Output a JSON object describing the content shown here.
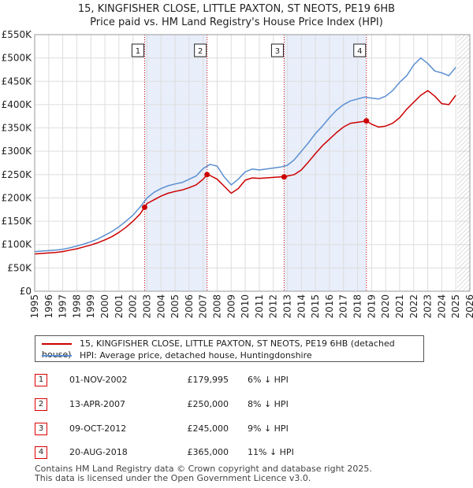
{
  "title": {
    "line1": "15, KINGFISHER CLOSE, LITTLE PAXTON, ST NEOTS, PE19 6HB",
    "line2": "Price paid vs. HM Land Registry's House Price Index (HPI)"
  },
  "colors": {
    "property": "#cc0000",
    "hpi": "#5b8fd1",
    "band": "#e8eefa",
    "grid": "#dddddd",
    "marker": "#cc0000"
  },
  "legend": {
    "property": "15, KINGFISHER CLOSE, LITTLE PAXTON, ST NEOTS, PE19 6HB (detached house)",
    "hpi": "HPI: Average price, detached house, Huntingdonshire"
  },
  "sales": [
    {
      "num": "1",
      "date": "01-NOV-2002",
      "price": "£179,995",
      "hpi": "6% ↓ HPI"
    },
    {
      "num": "2",
      "date": "13-APR-2007",
      "price": "£250,000",
      "hpi": "8% ↓ HPI"
    },
    {
      "num": "3",
      "date": "09-OCT-2012",
      "price": "£245,000",
      "hpi": "9% ↓ HPI"
    },
    {
      "num": "4",
      "date": "20-AUG-2018",
      "price": "£365,000",
      "hpi": "11% ↓ HPI"
    }
  ],
  "footer": {
    "line1": "Contains HM Land Registry data © Crown copyright and database right 2025.",
    "line2": "This data is licensed under the Open Government Licence v3.0."
  },
  "chart_data": {
    "type": "line",
    "title": "Price paid vs. HM Land Registry's House Price Index (HPI)",
    "xlim": [
      1995,
      2026
    ],
    "ylim": [
      0,
      550000
    ],
    "x_ticks": [
      "1995",
      "1996",
      "1997",
      "1998",
      "1999",
      "2000",
      "2001",
      "2002",
      "2003",
      "2004",
      "2005",
      "2006",
      "2007",
      "2008",
      "2009",
      "2010",
      "2011",
      "2012",
      "2013",
      "2014",
      "2015",
      "2016",
      "2017",
      "2018",
      "2019",
      "2020",
      "2021",
      "2022",
      "2023",
      "2024",
      "2025",
      "2026"
    ],
    "y_ticks": [
      {
        "value": 0,
        "label": "£0"
      },
      {
        "value": 50000,
        "label": "£50K"
      },
      {
        "value": 100000,
        "label": "£100K"
      },
      {
        "value": 150000,
        "label": "£150K"
      },
      {
        "value": 200000,
        "label": "£200K"
      },
      {
        "value": 250000,
        "label": "£250K"
      },
      {
        "value": 300000,
        "label": "£300K"
      },
      {
        "value": 350000,
        "label": "£350K"
      },
      {
        "value": 400000,
        "label": "£400K"
      },
      {
        "value": 450000,
        "label": "£450K"
      },
      {
        "value": 500000,
        "label": "£500K"
      },
      {
        "value": 550000,
        "label": "£550K"
      }
    ],
    "bands": [
      [
        2002.83,
        2007.28
      ],
      [
        2012.77,
        2018.63
      ]
    ],
    "future_start": 2025.1,
    "sale_markers": [
      {
        "label": "1",
        "x": 2002.83,
        "y": 179995
      },
      {
        "label": "2",
        "x": 2007.28,
        "y": 250000
      },
      {
        "label": "3",
        "x": 2012.77,
        "y": 245000
      },
      {
        "label": "4",
        "x": 2018.63,
        "y": 365000
      }
    ],
    "series": [
      {
        "name": "HPI: Average price, detached house, Huntingdonshire",
        "color": "#5b8fd1",
        "x": [
          1995,
          1995.5,
          1996,
          1996.5,
          1997,
          1997.5,
          1998,
          1998.5,
          1999,
          1999.5,
          2000,
          2000.5,
          2001,
          2001.5,
          2002,
          2002.5,
          2003,
          2003.5,
          2004,
          2004.5,
          2005,
          2005.5,
          2006,
          2006.5,
          2007,
          2007.5,
          2008,
          2008.5,
          2009,
          2009.5,
          2010,
          2010.5,
          2011,
          2011.5,
          2012,
          2012.5,
          2013,
          2013.5,
          2014,
          2014.5,
          2015,
          2015.5,
          2016,
          2016.5,
          2017,
          2017.5,
          2018,
          2018.5,
          2019,
          2019.5,
          2020,
          2020.5,
          2021,
          2021.5,
          2022,
          2022.5,
          2023,
          2023.5,
          2024,
          2024.5,
          2025
        ],
        "y": [
          85000,
          86000,
          87000,
          88000,
          90000,
          93000,
          97000,
          101000,
          106000,
          112000,
          120000,
          128000,
          138000,
          150000,
          163000,
          180000,
          200000,
          212000,
          220000,
          226000,
          230000,
          233000,
          240000,
          247000,
          263000,
          272000,
          268000,
          245000,
          228000,
          240000,
          256000,
          262000,
          260000,
          262000,
          264000,
          266000,
          270000,
          282000,
          300000,
          318000,
          338000,
          354000,
          372000,
          388000,
          400000,
          408000,
          412000,
          416000,
          414000,
          412000,
          418000,
          430000,
          448000,
          462000,
          485000,
          500000,
          488000,
          472000,
          468000,
          462000,
          480000
        ]
      },
      {
        "name": "15, KINGFISHER CLOSE, LITTLE PAXTON, ST NEOTS, PE19 6HB (detached house)",
        "color": "#cc0000",
        "x": [
          1995,
          1995.5,
          1996,
          1996.5,
          1997,
          1997.5,
          1998,
          1998.5,
          1999,
          1999.5,
          2000,
          2000.5,
          2001,
          2001.5,
          2002,
          2002.5,
          2002.83,
          2003,
          2003.5,
          2004,
          2004.5,
          2005,
          2005.5,
          2006,
          2006.5,
          2007,
          2007.28,
          2007.5,
          2008,
          2008.5,
          2009,
          2009.5,
          2010,
          2010.5,
          2011,
          2011.5,
          2012,
          2012.5,
          2012.77,
          2013,
          2013.5,
          2014,
          2014.5,
          2015,
          2015.5,
          2016,
          2016.5,
          2017,
          2017.5,
          2018,
          2018.63,
          2019,
          2019.5,
          2020,
          2020.5,
          2021,
          2021.5,
          2022,
          2022.5,
          2023,
          2023.5,
          2024,
          2024.5,
          2025
        ],
        "y": [
          80000,
          81000,
          82000,
          83000,
          85000,
          88000,
          91000,
          95000,
          99000,
          104000,
          110000,
          117000,
          126000,
          137000,
          150000,
          165000,
          179995,
          188000,
          196000,
          204000,
          210000,
          214000,
          217000,
          222000,
          228000,
          240000,
          250000,
          248000,
          240000,
          225000,
          210000,
          220000,
          238000,
          243000,
          242000,
          243000,
          244000,
          245000,
          245000,
          247000,
          250000,
          260000,
          277000,
          295000,
          312000,
          326000,
          340000,
          352000,
          360000,
          362000,
          365000,
          358000,
          352000,
          354000,
          360000,
          372000,
          390000,
          405000,
          420000,
          430000,
          418000,
          402000,
          400000,
          420000
        ]
      }
    ]
  }
}
